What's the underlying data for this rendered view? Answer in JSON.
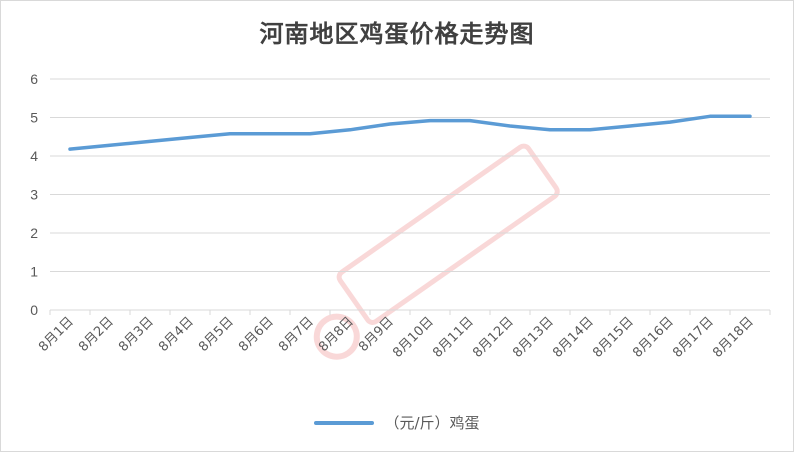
{
  "chart_data": {
    "type": "line",
    "title": "河南地区鸡蛋价格走势图",
    "categories": [
      "8月1日",
      "8月2日",
      "8月3日",
      "8月4日",
      "8月5日",
      "8月6日",
      "8月7日",
      "8月8日",
      "8月9日",
      "8月10日",
      "8月11日",
      "8月12日",
      "8月13日",
      "8月14日",
      "8月15日",
      "8月16日",
      "8月17日",
      "8月18日"
    ],
    "series": [
      {
        "name": "（元/斤）鸡蛋",
        "color": "#5b9bd5",
        "values": [
          4.18,
          4.28,
          4.38,
          4.48,
          4.58,
          4.58,
          4.58,
          4.68,
          4.83,
          4.92,
          4.92,
          4.78,
          4.68,
          4.68,
          4.78,
          4.88,
          5.03,
          5.03
        ]
      }
    ],
    "yticks": [
      "0",
      "1",
      "2",
      "3",
      "4",
      "5",
      "6"
    ],
    "ylim": [
      0,
      6
    ],
    "grid": true,
    "legend_position": "bottom"
  }
}
